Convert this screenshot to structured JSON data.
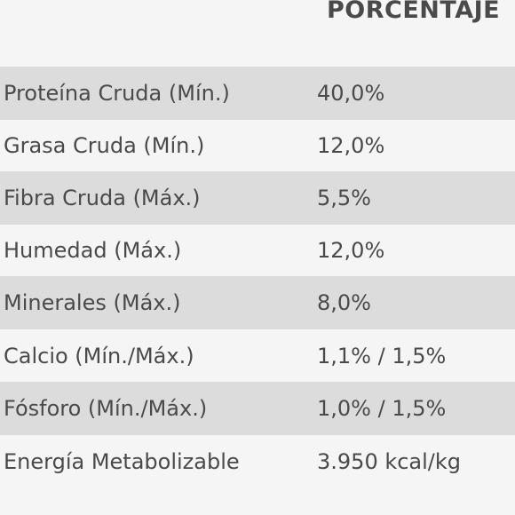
{
  "header": {
    "column_title": "PORCENTAJE"
  },
  "table": {
    "rows": [
      {
        "label": "Proteína Cruda (Mín.)",
        "value": "40,0%",
        "shaded": true
      },
      {
        "label": "Grasa Cruda (Mín.)",
        "value": "12,0%",
        "shaded": false
      },
      {
        "label": "Fibra Cruda (Máx.)",
        "value": "5,5%",
        "shaded": true
      },
      {
        "label": "Humedad (Máx.)",
        "value": "12,0%",
        "shaded": false
      },
      {
        "label": "Minerales (Máx.)",
        "value": "8,0%",
        "shaded": true
      },
      {
        "label": "Calcio (Mín./Máx.)",
        "value": "1,1% / 1,5%",
        "shaded": false
      },
      {
        "label": "Fósforo (Mín./Máx.)",
        "value": "1,0% / 1,5%",
        "shaded": true
      },
      {
        "label": "Energía Metabolizable",
        "value": "3.950 kcal/kg",
        "shaded": false
      }
    ]
  },
  "colors": {
    "text": "#4a4a4a",
    "row_light": "#f5f5f5",
    "row_shaded": "#dcdcdc"
  }
}
